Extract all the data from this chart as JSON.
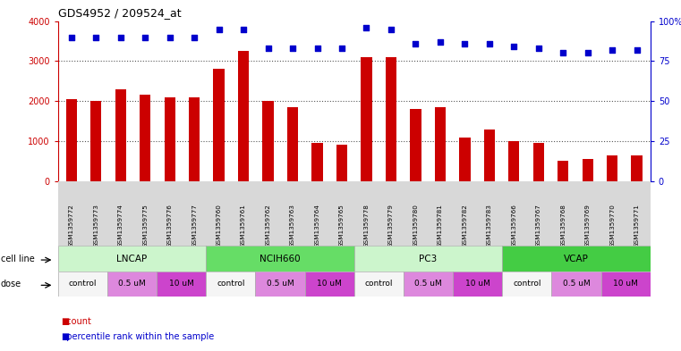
{
  "title": "GDS4952 / 209524_at",
  "samples": [
    "GSM1359772",
    "GSM1359773",
    "GSM1359774",
    "GSM1359775",
    "GSM1359776",
    "GSM1359777",
    "GSM1359760",
    "GSM1359761",
    "GSM1359762",
    "GSM1359763",
    "GSM1359764",
    "GSM1359765",
    "GSM1359778",
    "GSM1359779",
    "GSM1359780",
    "GSM1359781",
    "GSM1359782",
    "GSM1359783",
    "GSM1359766",
    "GSM1359767",
    "GSM1359768",
    "GSM1359769",
    "GSM1359770",
    "GSM1359771"
  ],
  "counts": [
    2050,
    2000,
    2300,
    2150,
    2100,
    2100,
    2800,
    3250,
    2000,
    1850,
    950,
    900,
    3100,
    3100,
    1800,
    1850,
    1100,
    1300,
    1000,
    950,
    500,
    560,
    640,
    640
  ],
  "percentiles": [
    90,
    90,
    90,
    90,
    90,
    90,
    95,
    95,
    83,
    83,
    83,
    83,
    96,
    95,
    86,
    87,
    86,
    86,
    84,
    83,
    80,
    80,
    82,
    82
  ],
  "cell_lines": [
    {
      "name": "LNCAP",
      "start": 0,
      "end": 6,
      "color": "#ccf5cc"
    },
    {
      "name": "NCIH660",
      "start": 6,
      "end": 12,
      "color": "#66dd66"
    },
    {
      "name": "PC3",
      "start": 12,
      "end": 18,
      "color": "#ccf5cc"
    },
    {
      "name": "VCAP",
      "start": 18,
      "end": 24,
      "color": "#44cc44"
    }
  ],
  "doses": [
    {
      "label": "control",
      "start": 0,
      "end": 2,
      "color": "#f5f5f5"
    },
    {
      "label": "0.5 uM",
      "start": 2,
      "end": 4,
      "color": "#dd88dd"
    },
    {
      "label": "10 uM",
      "start": 4,
      "end": 6,
      "color": "#cc44cc"
    },
    {
      "label": "control",
      "start": 6,
      "end": 8,
      "color": "#f5f5f5"
    },
    {
      "label": "0.5 uM",
      "start": 8,
      "end": 10,
      "color": "#dd88dd"
    },
    {
      "label": "10 uM",
      "start": 10,
      "end": 12,
      "color": "#cc44cc"
    },
    {
      "label": "control",
      "start": 12,
      "end": 14,
      "color": "#f5f5f5"
    },
    {
      "label": "0.5 uM",
      "start": 14,
      "end": 16,
      "color": "#dd88dd"
    },
    {
      "label": "10 uM",
      "start": 16,
      "end": 18,
      "color": "#cc44cc"
    },
    {
      "label": "control",
      "start": 18,
      "end": 20,
      "color": "#f5f5f5"
    },
    {
      "label": "0.5 uM",
      "start": 20,
      "end": 22,
      "color": "#dd88dd"
    },
    {
      "label": "10 uM",
      "start": 22,
      "end": 24,
      "color": "#cc44cc"
    }
  ],
  "bar_color": "#cc0000",
  "dot_color": "#0000cc",
  "ylim_left": [
    0,
    4000
  ],
  "ylim_right": [
    0,
    100
  ],
  "yticks_left": [
    0,
    1000,
    2000,
    3000,
    4000
  ],
  "yticks_right": [
    0,
    25,
    50,
    75,
    100
  ],
  "grid_color": "#555555",
  "bg_color": "#ffffff",
  "tick_area_color": "#d8d8d8"
}
